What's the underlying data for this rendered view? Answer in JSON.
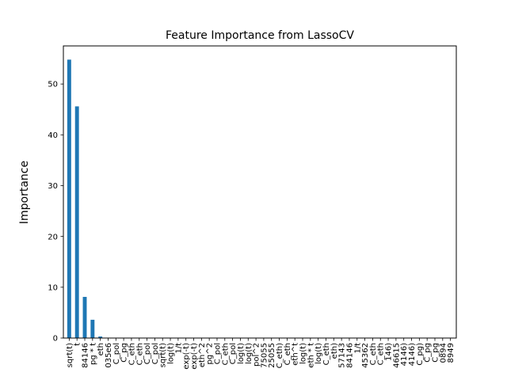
{
  "chart_data": {
    "type": "bar",
    "title": "Feature Importance from LassoCV",
    "xlabel": "",
    "ylabel": "Importance",
    "ylim": [
      0,
      57.5
    ],
    "yticks": [
      0,
      10,
      20,
      30,
      40,
      50
    ],
    "grid": false,
    "legend": "none",
    "bar_color": "#1f77b4",
    "categories": [
      "sqrt(t)",
      "t",
      "84146",
      "pg * t",
      "eth",
      "035e6",
      "C_pol",
      "C_pg",
      "C_eth",
      "C_eth",
      "C_pol",
      "C_pol",
      "sqrt(t)",
      "log(t)",
      "1/t",
      "exp(-t)",
      "exp(-t)",
      "eth^2",
      "pg^2",
      "C_pol",
      "C_eth",
      "C_pol",
      "log(t)",
      "log(t)",
      "pol^2",
      "75055",
      "25055",
      "C_eth)",
      "C_eth",
      "eth^t",
      "log(t)",
      "eth * t",
      "log(t)",
      "C_eth",
      "eth)",
      "57143",
      "84146",
      "1/t",
      "45362",
      "C_eth",
      "C_eth",
      "146)",
      "46615",
      "4146)",
      "4146)",
      "C_pg)",
      "C_pg",
      "C_pg",
      "0894",
      "8949"
    ],
    "values": [
      54.8,
      45.6,
      8.1,
      3.6,
      0.3,
      0.05,
      0,
      0,
      0,
      0,
      0,
      0,
      0,
      0,
      0,
      0,
      0,
      0,
      0,
      0,
      0,
      0,
      0,
      0,
      0,
      0,
      0,
      0,
      0,
      0,
      0,
      0,
      0,
      0,
      0,
      0,
      0,
      0,
      0,
      0,
      0,
      0,
      0,
      0,
      0,
      0,
      0,
      0,
      0,
      0
    ]
  }
}
